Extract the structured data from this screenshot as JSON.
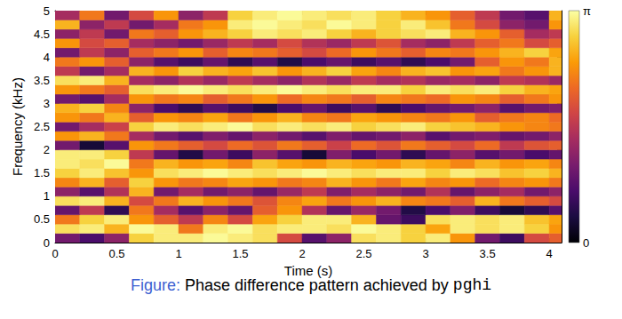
{
  "chart_data": {
    "type": "heatmap",
    "caption_label": "Figure:",
    "title": "Phase difference pattern achieved by pghi",
    "x_label": "Time (s)",
    "y_label": "Frequency (kHz)",
    "xlim": [
      0,
      4.1
    ],
    "xticks": [
      0,
      0.5,
      1,
      1.5,
      2,
      2.5,
      3,
      3.5,
      4
    ],
    "ylim": [
      0,
      5
    ],
    "yticks": [
      0,
      0.5,
      1,
      1.5,
      2,
      2.5,
      3,
      3.5,
      4,
      4.5,
      5
    ],
    "x_edges": [
      0,
      0.2,
      0.4,
      0.6,
      0.8,
      1.0,
      1.2,
      1.4,
      1.6,
      1.8,
      2.0,
      2.2,
      2.4,
      2.6,
      2.8,
      3.0,
      3.2,
      3.4,
      3.6,
      3.8,
      4.0,
      4.1
    ],
    "y_edges": [
      0,
      0.2,
      0.4,
      0.6,
      0.8,
      1.0,
      1.2,
      1.4,
      1.6,
      1.8,
      2.0,
      2.2,
      2.4,
      2.6,
      2.8,
      3.0,
      3.2,
      3.4,
      3.6,
      3.8,
      4.0,
      4.2,
      4.4,
      4.6,
      4.8,
      5.0
    ],
    "values": [
      [
        1.0,
        0.7,
        1.2,
        2.8,
        3.0,
        3.0,
        3.1,
        3.0,
        2.9,
        1.8,
        0.8,
        1.2,
        2.9,
        3.0,
        2.8,
        3.0,
        2.4,
        1.0,
        0.6,
        1.8,
        2.0
      ],
      [
        2.9,
        3.0,
        2.6,
        3.1,
        3.0,
        2.2,
        3.0,
        3.1,
        2.9,
        3.0,
        3.0,
        2.9,
        3.1,
        3.0,
        2.8,
        2.5,
        3.0,
        2.9,
        3.0,
        2.8,
        2.4
      ],
      [
        2.2,
        2.8,
        3.0,
        2.4,
        2.0,
        1.6,
        2.3,
        1.8,
        2.5,
        2.8,
        3.0,
        3.0,
        2.6,
        0.9,
        0.6,
        2.9,
        3.0,
        2.9,
        3.0,
        2.7,
        2.5
      ],
      [
        0.9,
        1.6,
        0.5,
        2.2,
        1.4,
        0.8,
        1.2,
        0.9,
        2.0,
        2.4,
        1.5,
        0.9,
        1.3,
        1.0,
        0.4,
        0.7,
        1.1,
        0.6,
        0.3,
        0.5,
        0.8
      ],
      [
        2.9,
        3.0,
        2.6,
        1.8,
        2.2,
        2.6,
        2.4,
        2.2,
        1.9,
        2.3,
        2.5,
        2.2,
        2.4,
        2.6,
        2.3,
        2.2,
        2.0,
        2.6,
        2.2,
        2.0,
        1.8
      ],
      [
        1.2,
        0.8,
        1.5,
        2.6,
        1.0,
        1.4,
        1.0,
        1.2,
        0.9,
        1.3,
        1.6,
        1.1,
        1.4,
        1.2,
        1.0,
        1.5,
        0.9,
        1.2,
        1.4,
        1.0,
        1.2
      ],
      [
        2.3,
        2.6,
        2.0,
        2.8,
        2.4,
        2.2,
        2.3,
        2.5,
        2.4,
        2.2,
        2.3,
        2.6,
        2.4,
        2.2,
        2.5,
        2.3,
        2.4,
        2.1,
        2.3,
        2.4,
        2.2
      ],
      [
        2.8,
        3.0,
        2.7,
        2.4,
        2.9,
        3.0,
        3.1,
        3.0,
        2.9,
        3.0,
        3.1,
        3.0,
        2.9,
        3.0,
        3.0,
        2.8,
        3.0,
        2.9,
        2.7,
        2.8,
        2.6
      ],
      [
        3.0,
        2.9,
        3.1,
        2.2,
        2.6,
        2.4,
        2.5,
        2.3,
        2.7,
        2.5,
        2.4,
        2.6,
        2.5,
        2.4,
        2.6,
        2.5,
        2.3,
        2.6,
        2.4,
        2.5,
        2.3
      ],
      [
        3.0,
        3.0,
        2.8,
        1.6,
        0.9,
        0.4,
        1.0,
        0.6,
        1.2,
        0.8,
        0.3,
        1.1,
        0.7,
        1.0,
        0.5,
        0.9,
        1.2,
        0.8,
        1.0,
        0.7,
        0.9
      ],
      [
        1.0,
        0.3,
        0.8,
        2.4,
        2.2,
        2.0,
        1.8,
        2.1,
        1.9,
        2.2,
        2.0,
        1.7,
        2.1,
        1.9,
        2.2,
        2.0,
        1.8,
        2.1,
        1.6,
        1.9,
        2.0
      ],
      [
        2.4,
        2.6,
        2.2,
        1.4,
        1.0,
        0.8,
        1.1,
        0.9,
        1.2,
        1.0,
        0.8,
        1.1,
        0.9,
        1.0,
        1.2,
        0.8,
        1.0,
        1.1,
        0.9,
        1.0,
        1.2
      ],
      [
        1.0,
        1.4,
        1.7,
        2.8,
        3.0,
        2.9,
        3.0,
        3.1,
        2.9,
        3.0,
        2.9,
        3.0,
        2.8,
        2.9,
        3.0,
        2.8,
        2.7,
        2.6,
        2.4,
        2.3,
        2.2
      ],
      [
        2.4,
        2.2,
        2.6,
        2.0,
        2.4,
        2.3,
        2.5,
        2.2,
        2.4,
        2.6,
        2.3,
        2.2,
        2.5,
        2.4,
        2.3,
        2.2,
        2.4,
        2.0,
        2.2,
        2.3,
        2.1
      ],
      [
        2.6,
        2.8,
        2.3,
        1.2,
        0.7,
        0.5,
        0.8,
        0.6,
        0.4,
        0.7,
        0.9,
        0.6,
        0.8,
        0.5,
        0.7,
        0.9,
        1.0,
        1.2,
        0.8,
        1.0,
        1.1
      ],
      [
        1.0,
        0.8,
        1.4,
        2.4,
        2.2,
        2.3,
        2.0,
        2.2,
        2.4,
        2.1,
        2.3,
        2.2,
        2.0,
        2.3,
        2.2,
        2.1,
        2.4,
        2.3,
        2.0,
        2.2,
        2.4
      ],
      [
        2.4,
        2.2,
        2.0,
        2.9,
        3.0,
        3.1,
        3.0,
        2.9,
        3.0,
        3.1,
        3.0,
        2.9,
        3.0,
        3.0,
        2.8,
        3.0,
        2.9,
        3.0,
        2.8,
        2.6,
        2.5
      ],
      [
        2.9,
        3.0,
        2.6,
        1.4,
        1.2,
        1.5,
        1.3,
        1.6,
        1.4,
        1.2,
        1.5,
        1.3,
        1.6,
        1.4,
        1.5,
        1.3,
        1.4,
        1.2,
        1.6,
        1.5,
        1.3
      ],
      [
        1.6,
        1.0,
        1.4,
        2.6,
        2.4,
        2.8,
        2.6,
        2.5,
        2.7,
        2.4,
        2.6,
        2.8,
        2.5,
        2.3,
        2.6,
        2.7,
        2.4,
        2.5,
        2.2,
        2.4,
        2.6
      ],
      [
        2.2,
        2.4,
        2.0,
        1.2,
        0.8,
        0.6,
        0.9,
        0.5,
        0.8,
        0.4,
        0.7,
        0.9,
        0.6,
        0.8,
        0.5,
        0.7,
        1.0,
        2.0,
        2.4,
        2.2,
        2.6
      ],
      [
        1.0,
        1.6,
        1.2,
        2.0,
        2.2,
        2.4,
        2.0,
        2.3,
        2.2,
        2.0,
        1.8,
        2.1,
        2.4,
        2.2,
        2.0,
        2.3,
        2.2,
        2.4,
        2.6,
        2.8,
        2.5
      ],
      [
        2.4,
        1.8,
        2.0,
        1.4,
        1.2,
        1.0,
        1.3,
        1.6,
        1.4,
        1.8,
        1.5,
        1.3,
        1.6,
        1.9,
        1.4,
        1.2,
        1.6,
        2.0,
        2.2,
        1.8,
        2.0
      ],
      [
        1.2,
        1.6,
        1.0,
        2.2,
        2.0,
        2.4,
        2.6,
        2.8,
        3.0,
        2.9,
        3.0,
        2.8,
        2.6,
        2.8,
        2.9,
        3.0,
        2.6,
        2.4,
        2.0,
        1.4,
        1.6
      ],
      [
        2.6,
        1.2,
        1.6,
        1.0,
        1.4,
        2.2,
        2.4,
        3.0,
        3.1,
        3.0,
        2.9,
        3.1,
        3.0,
        2.8,
        3.0,
        2.7,
        2.2,
        1.8,
        1.2,
        1.0,
        2.4
      ],
      [
        1.4,
        2.2,
        1.0,
        1.8,
        2.4,
        1.2,
        1.6,
        2.8,
        3.0,
        3.1,
        3.0,
        2.9,
        3.0,
        2.8,
        2.6,
        2.4,
        2.0,
        1.6,
        1.0,
        0.8,
        2.6
      ]
    ],
    "colorbar": {
      "range": [
        0,
        3.14159
      ],
      "ticks": [
        0,
        {
          "value": 3.14159,
          "label": "π"
        }
      ]
    }
  }
}
